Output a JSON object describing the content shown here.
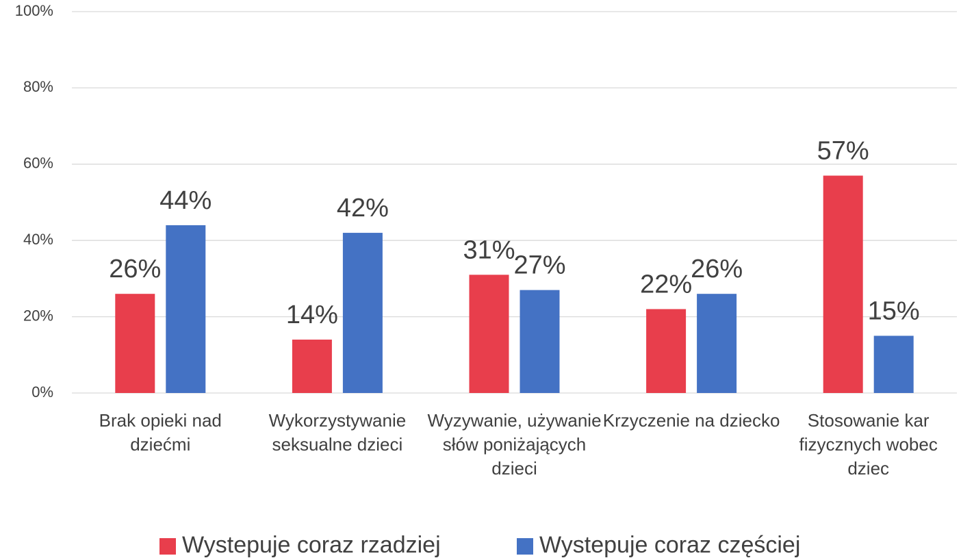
{
  "chart_data": {
    "type": "bar",
    "categories": [
      "Brak opieki nad dziećmi",
      "Wykorzystywanie seksualne dzieci",
      "Wyzywanie, używanie słów poniżających dzieci",
      "Krzyczenie na dziecko",
      "Stosowanie kar fizycznych wobec dziec"
    ],
    "series": [
      {
        "name": "Wystepuje coraz rzadziej",
        "color": "#e83e4c",
        "values": [
          26,
          14,
          31,
          22,
          57
        ],
        "value_labels": [
          "26%",
          "14%",
          "31%",
          "22%",
          "57%"
        ]
      },
      {
        "name": "Wystepuje coraz częściej",
        "color": "#4472c4",
        "values": [
          44,
          42,
          27,
          26,
          15
        ],
        "value_labels": [
          "44%",
          "42%",
          "27%",
          "26%",
          "15%"
        ]
      }
    ],
    "ylim": [
      0,
      100
    ],
    "yticks": [
      {
        "value": 0,
        "label": "0%"
      },
      {
        "value": 20,
        "label": "20%"
      },
      {
        "value": 40,
        "label": "40%"
      },
      {
        "value": 60,
        "label": "60%"
      },
      {
        "value": 80,
        "label": "80%"
      },
      {
        "value": 100,
        "label": "100%"
      }
    ],
    "grid": true,
    "legend": "bottom"
  }
}
